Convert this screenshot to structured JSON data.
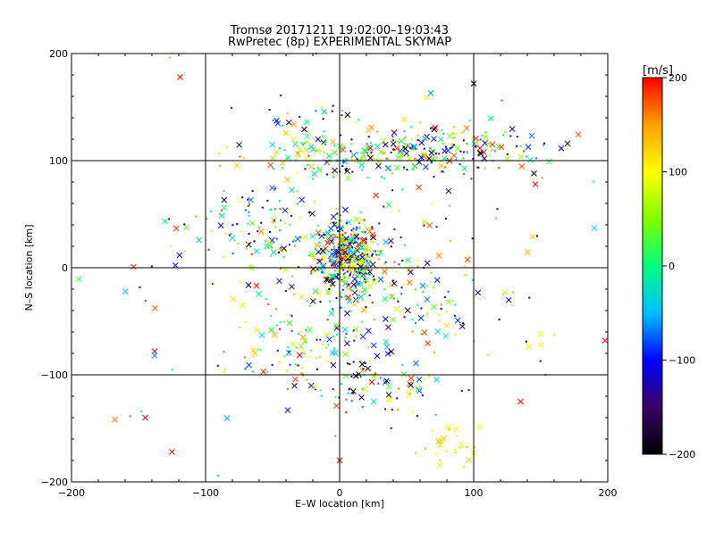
{
  "chart_data": {
    "type": "scatter",
    "title": "Tromsø 20171211 19:02:00–19:03:43",
    "subtitle": "RwPretec (8p) EXPERIMENTAL SKYMAP",
    "xlabel": "E–W location [km]",
    "ylabel": "N–S location [km]",
    "xlim": [
      -200,
      200
    ],
    "ylim": [
      -200,
      200
    ],
    "xticks": [
      -200,
      -100,
      0,
      100,
      200
    ],
    "yticks": [
      -200,
      -100,
      0,
      100,
      200
    ],
    "grid_lines_x": [
      -100,
      0,
      100
    ],
    "grid_lines_y": [
      -100,
      0,
      100
    ],
    "markers": [
      "cross",
      "dot"
    ],
    "colorbar": {
      "label": "[m/s]",
      "range": [
        -200,
        200
      ],
      "ticks": [
        200,
        100,
        0,
        -100,
        -200
      ],
      "colors": [
        "#000000",
        "#3a0066",
        "#0000ff",
        "#00bfff",
        "#00ff80",
        "#80ff00",
        "#ffff00",
        "#ffa000",
        "#ff0000"
      ]
    },
    "clusters": [
      {
        "cx": 5,
        "cy": 10,
        "sx": 12,
        "sy": 18,
        "n": 420,
        "vmin": -200,
        "vmax": 200
      },
      {
        "cx": 60,
        "cy": 110,
        "sx": 45,
        "sy": 12,
        "n": 260,
        "vmin": -200,
        "vmax": 200
      },
      {
        "cx": -15,
        "cy": 105,
        "sx": 20,
        "sy": 10,
        "n": 70,
        "vmin": -50,
        "vmax": 150
      },
      {
        "cx": -60,
        "cy": 35,
        "sx": 25,
        "sy": 25,
        "n": 110,
        "vmin": -200,
        "vmax": 200
      },
      {
        "cx": -30,
        "cy": -75,
        "sx": 25,
        "sy": 18,
        "n": 80,
        "vmin": -150,
        "vmax": 200
      },
      {
        "cx": 25,
        "cy": -110,
        "sx": 25,
        "sy": 15,
        "n": 80,
        "vmin": -200,
        "vmax": 200
      },
      {
        "cx": 80,
        "cy": -165,
        "sx": 12,
        "sy": 8,
        "n": 30,
        "vmin": 50,
        "vmax": 150
      },
      {
        "cx": 40,
        "cy": -20,
        "sx": 40,
        "sy": 35,
        "n": 140,
        "vmin": -200,
        "vmax": 200
      },
      {
        "cx": 0,
        "cy": 0,
        "sx": 90,
        "sy": 90,
        "n": 130,
        "vmin": -200,
        "vmax": 200
      },
      {
        "cx": -20,
        "cy": 140,
        "sx": 25,
        "sy": 6,
        "n": 22,
        "vmin": -200,
        "vmax": 200
      }
    ],
    "points": [
      {
        "x": -119,
        "y": 178,
        "v": 200,
        "m": "cross"
      },
      {
        "x": -145,
        "y": -140,
        "v": 200,
        "m": "cross"
      },
      {
        "x": -125,
        "y": -172,
        "v": 200,
        "m": "cross"
      },
      {
        "x": -138,
        "y": -78,
        "v": 200,
        "m": "cross"
      },
      {
        "x": -138,
        "y": -82,
        "v": -60,
        "m": "cross"
      },
      {
        "x": 0,
        "y": -180,
        "v": 200,
        "m": "cross"
      },
      {
        "x": 190,
        "y": 37,
        "v": -40,
        "m": "cross"
      },
      {
        "x": 198,
        "y": -68,
        "v": 200,
        "m": "cross"
      },
      {
        "x": 170,
        "y": 116,
        "v": -200,
        "m": "cross"
      },
      {
        "x": 68,
        "y": 163,
        "v": -60,
        "m": "cross"
      },
      {
        "x": 100,
        "y": 172,
        "v": -200,
        "m": "cross"
      },
      {
        "x": 150,
        "y": -62,
        "v": 100,
        "m": "cross"
      },
      {
        "x": 150,
        "y": -72,
        "v": 100,
        "m": "cross"
      },
      {
        "x": 135,
        "y": -125,
        "v": 200,
        "m": "cross"
      },
      {
        "x": 145,
        "y": 88,
        "v": -200,
        "m": "cross"
      },
      {
        "x": 146,
        "y": 78,
        "v": 200,
        "m": "cross"
      }
    ]
  }
}
